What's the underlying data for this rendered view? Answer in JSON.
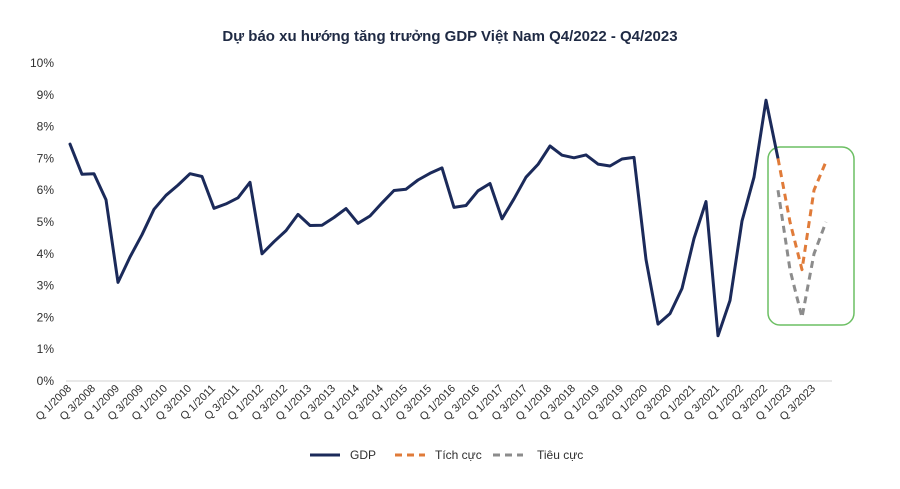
{
  "chart_data": {
    "type": "line",
    "title": "Dự báo xu hướng tăng trưởng GDP Việt Nam Q4/2022 - Q4/2023",
    "xlabel": "",
    "ylabel": "",
    "ylim": [
      0,
      10
    ],
    "y_ticks": [
      "0%",
      "1%",
      "2%",
      "3%",
      "4%",
      "5%",
      "6%",
      "7%",
      "8%",
      "9%",
      "10%"
    ],
    "x_tick_labels": [
      "Q 1/2008",
      "Q 3/2008",
      "Q 1/2009",
      "Q 3/2009",
      "Q 1/2010",
      "Q 3/2010",
      "Q 1/2011",
      "Q 3/2011",
      "Q 1/2012",
      "Q 3/2012",
      "Q 1/2013",
      "Q 3/2013",
      "Q 1/2014",
      "Q 3/2014",
      "Q 1/2015",
      "Q 3/2015",
      "Q 1/2016",
      "Q 3/2016",
      "Q 1/2017",
      "Q 3/2017",
      "Q 1/2018",
      "Q 3/2018",
      "Q 1/2019",
      "Q 3/2019",
      "Q 1/2020",
      "Q 3/2020",
      "Q 1/2021",
      "Q 3/2021",
      "Q 1/2022",
      "Q 3/2022",
      "Q 1/2023",
      "Q 3/2023"
    ],
    "grid": false,
    "legend_position": "bottom",
    "series": [
      {
        "name": "GDP",
        "color": "#1b2a5a",
        "style": "solid",
        "start_index": 0,
        "values": [
          7.45,
          6.5,
          6.52,
          5.7,
          3.1,
          3.9,
          4.6,
          5.4,
          5.84,
          6.16,
          6.52,
          6.43,
          5.43,
          5.57,
          5.76,
          6.25,
          4.0,
          4.38,
          4.73,
          5.24,
          4.89,
          4.9,
          5.14,
          5.42,
          4.96,
          5.19,
          5.6,
          5.99,
          6.03,
          6.32,
          6.53,
          6.7,
          5.46,
          5.52,
          5.98,
          6.21,
          5.1,
          5.73,
          6.41,
          6.81,
          7.39,
          7.1,
          7.02,
          7.11,
          6.82,
          6.76,
          6.98,
          7.03,
          3.82,
          1.79,
          2.12,
          2.91,
          4.48,
          5.64,
          1.42,
          2.53,
          5.03,
          6.41,
          8.83,
          7.0
        ]
      },
      {
        "name": "Tích cực",
        "color": "#e07b39",
        "style": "dashed",
        "start_index": 59,
        "values": [
          7.0,
          5.0,
          3.5,
          6.0,
          6.9
        ]
      },
      {
        "name": "Tiêu cực",
        "color": "#8c8c8c",
        "style": "dashed",
        "start_index": 59,
        "values": [
          6.0,
          3.5,
          2.0,
          4.0,
          5.0
        ]
      }
    ],
    "highlight_box_color": "#6cbf63"
  }
}
